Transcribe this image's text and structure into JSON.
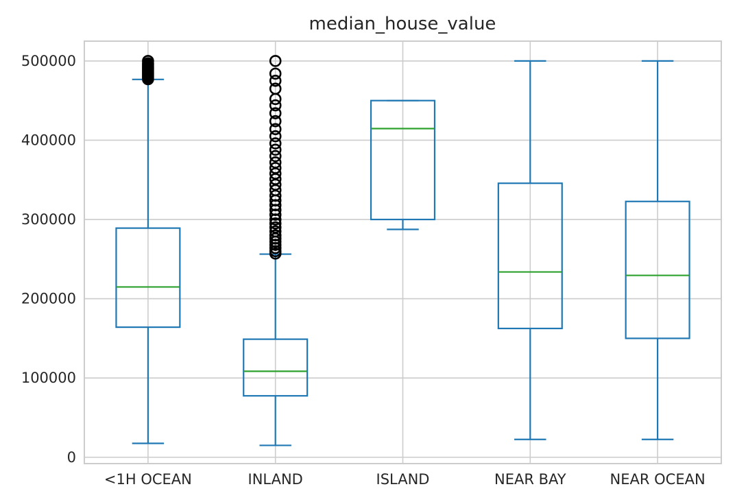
{
  "chart_data": {
    "type": "box",
    "title": "median_house_value",
    "xlabel": "",
    "ylabel": "",
    "ylim": [
      -8000,
      525000
    ],
    "yticks": [
      0,
      100000,
      200000,
      300000,
      400000,
      500000
    ],
    "grid": true,
    "legend": false,
    "categories": [
      "<1H OCEAN",
      "INLAND",
      "ISLAND",
      "NEAR BAY",
      "NEAR OCEAN"
    ],
    "boxes": [
      {
        "category": "<1H OCEAN",
        "whisker_low": 17500,
        "q1": 164100,
        "median": 214850,
        "q3": 289100,
        "whisker_high": 476700,
        "outliers": [
          477000,
          479000,
          481000,
          483000,
          485000,
          487000,
          489000,
          491000,
          493000,
          495000,
          497000,
          500001
        ]
      },
      {
        "category": "INLAND",
        "whisker_low": 14999,
        "q1": 77500,
        "median": 108500,
        "q3": 148950,
        "whisker_high": 256300,
        "outliers": [
          257000,
          260000,
          264000,
          268000,
          272000,
          276000,
          280000,
          285000,
          290000,
          295000,
          300000,
          306000,
          312000,
          318000,
          324000,
          330000,
          337000,
          344000,
          351000,
          358000,
          365000,
          372000,
          380000,
          388000,
          396000,
          405000,
          414000,
          424000,
          434000,
          444000,
          452000,
          465000,
          475000,
          484000,
          500001
        ]
      },
      {
        "category": "ISLAND",
        "whisker_low": 287500,
        "q1": 300000,
        "median": 414700,
        "q3": 450000,
        "whisker_high": 450000,
        "outliers": []
      },
      {
        "category": "NEAR BAY",
        "whisker_low": 22500,
        "q1": 162500,
        "median": 233800,
        "q3": 345700,
        "whisker_high": 500001,
        "outliers": []
      },
      {
        "category": "NEAR OCEAN",
        "whisker_low": 22500,
        "q1": 150000,
        "median": 229450,
        "q3": 322750,
        "whisker_high": 500001,
        "outliers": []
      }
    ],
    "colors": {
      "box": "#1f77b4",
      "median": "#2ca02c",
      "flier": "#000000",
      "grid": "#cccccc"
    }
  }
}
